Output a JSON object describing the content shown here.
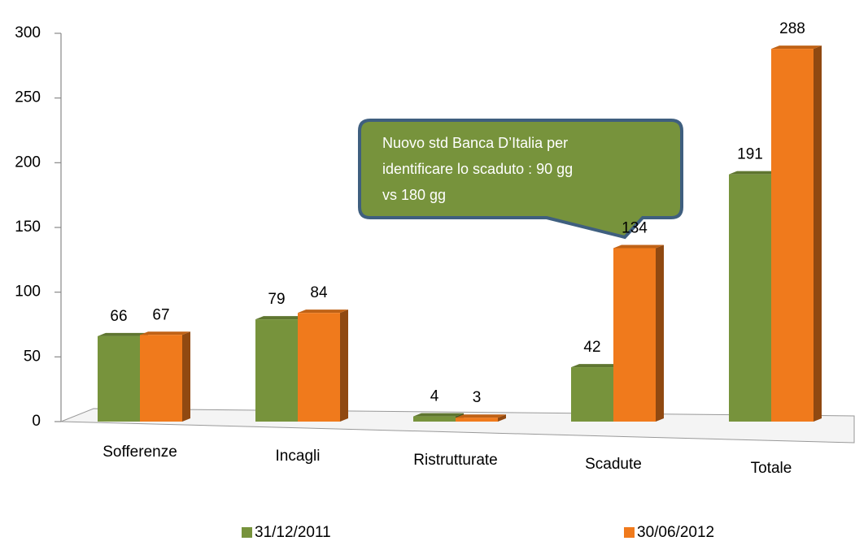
{
  "chart_data": {
    "type": "bar",
    "categories": [
      "Sofferenze",
      "Incagli",
      "Ristrutturate",
      "Scadute",
      "Totale"
    ],
    "series": [
      {
        "name": "31/12/2011",
        "color": "#77933c",
        "values": [
          66,
          79,
          4,
          42,
          191
        ]
      },
      {
        "name": "30/06/2012",
        "color": "#f07a1c",
        "values": [
          67,
          84,
          3,
          134,
          288
        ]
      }
    ],
    "ylim": [
      0,
      300
    ],
    "yticks": [
      0,
      50,
      100,
      150,
      200,
      250,
      300
    ],
    "annotation": [
      "Nuovo std Banca D’Italia  per",
      "identificare  lo  scaduto : 90 gg",
      "vs  180 gg"
    ],
    "legend": "bottom"
  }
}
